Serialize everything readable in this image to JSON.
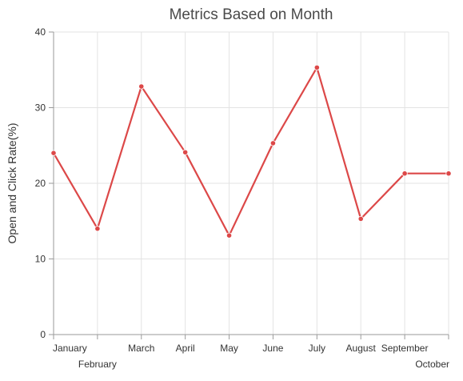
{
  "chart_data": {
    "type": "line",
    "title": "Metrics Based on Month",
    "xlabel": "",
    "ylabel": "Open and Click Rate(%)",
    "categories": [
      "January",
      "February",
      "March",
      "April",
      "May",
      "June",
      "July",
      "August",
      "September",
      "October"
    ],
    "series": [
      {
        "values": [
          24,
          14,
          32.8,
          24.1,
          13.1,
          25.3,
          35.3,
          15.3,
          21.3,
          21.3
        ],
        "color": "#dc4848"
      }
    ],
    "ylim": [
      0,
      40
    ],
    "yticks": [
      0,
      10,
      20,
      30,
      40
    ],
    "grid": true,
    "legend": "none"
  }
}
